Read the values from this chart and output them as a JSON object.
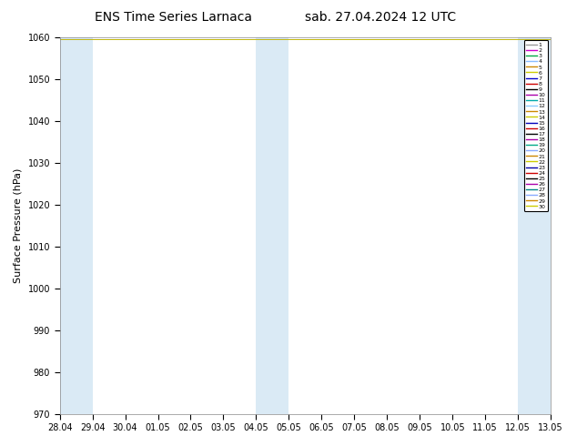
{
  "title": "ENS Time Series Larnaca",
  "title2": "sab. 27.04.2024 12 UTC",
  "ylabel": "Surface Pressure (hPa)",
  "ylim": [
    970,
    1060
  ],
  "yticks": [
    970,
    980,
    990,
    1000,
    1010,
    1020,
    1030,
    1040,
    1050,
    1060
  ],
  "xtick_labels": [
    "28.04",
    "29.04",
    "30.04",
    "01.05",
    "02.05",
    "03.05",
    "04.05",
    "05.05",
    "06.05",
    "07.05",
    "08.05",
    "09.05",
    "10.05",
    "11.05",
    "12.05",
    "13.05"
  ],
  "shade_color": "#daeaf5",
  "background_color": "#ffffff",
  "member_colors": [
    "#999999",
    "#cc00cc",
    "#00aa44",
    "#88bbff",
    "#cc8800",
    "#cccc00",
    "#0000cc",
    "#cc0000",
    "#000000",
    "#aa00aa",
    "#00aaaa",
    "#88ccff",
    "#cc8800",
    "#cccc00",
    "#0000bb",
    "#cc0000",
    "#000000",
    "#aa00aa",
    "#00aa88",
    "#88aaff",
    "#cc8800",
    "#cccc00",
    "#0000aa",
    "#cc0000",
    "#000000",
    "#aa00aa",
    "#008888",
    "#88aaff",
    "#cc8800",
    "#cccc00"
  ],
  "num_members": 30,
  "figsize": [
    6.34,
    4.9
  ],
  "dpi": 100
}
